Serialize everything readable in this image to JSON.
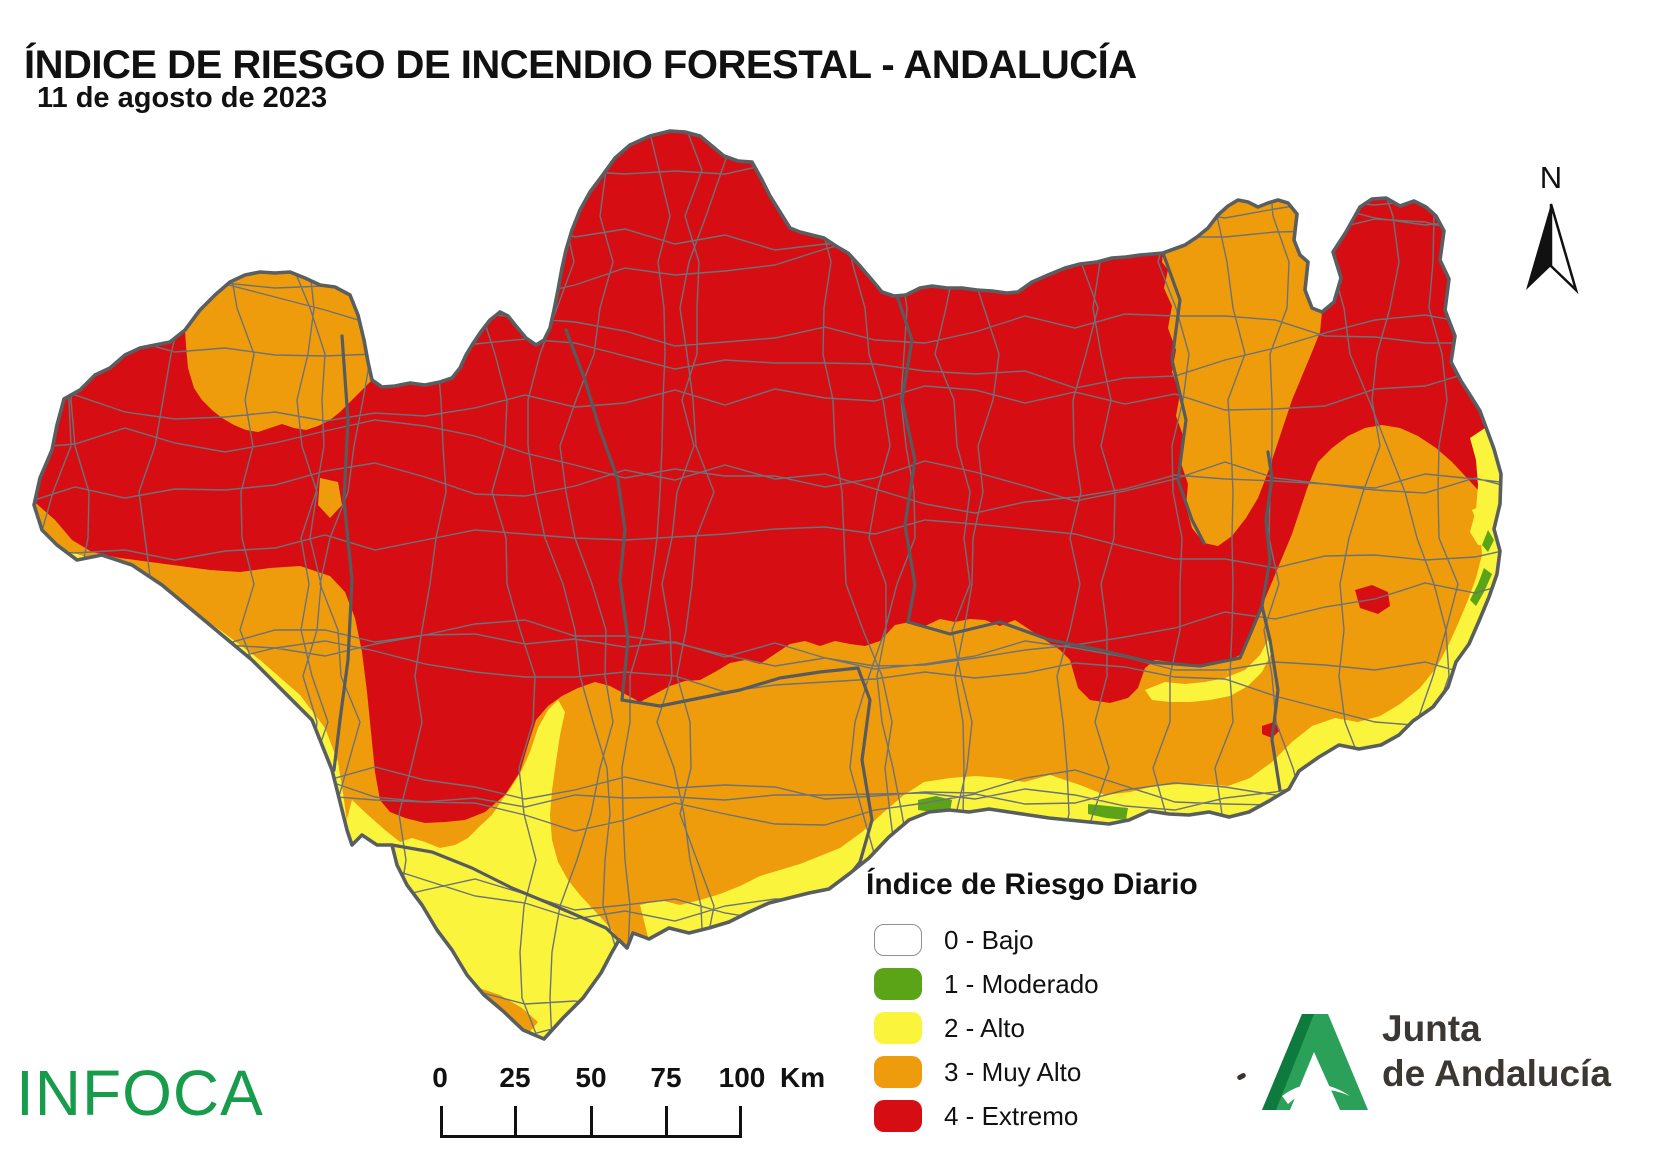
{
  "header": {
    "title": "ÍNDICE DE RIESGO DE INCENDIO FORESTAL - ANDALUCÍA",
    "date": "11 de agosto de 2023"
  },
  "map": {
    "region": "Andalucía",
    "north_label": "N",
    "risk_levels": [
      {
        "value": "0",
        "label": "0 - Bajo",
        "color": "#ffffff"
      },
      {
        "value": "1",
        "label": "1 - Moderado",
        "color": "#5ba417"
      },
      {
        "value": "2",
        "label": "2 - Alto",
        "color": "#faf53c"
      },
      {
        "value": "3",
        "label": "3 - Muy Alto",
        "color": "#ef9c0c"
      },
      {
        "value": "4",
        "label": "4 - Extremo",
        "color": "#d60e14"
      }
    ]
  },
  "legend": {
    "title": "Índice de Riesgo Diario"
  },
  "scale_bar": {
    "ticks": [
      "0",
      "25",
      "50",
      "75",
      "100"
    ],
    "unit": "Km"
  },
  "branding": {
    "infoca": "INFOCA",
    "junta_line1": "Junta",
    "junta_line2": "de Andalucía"
  }
}
